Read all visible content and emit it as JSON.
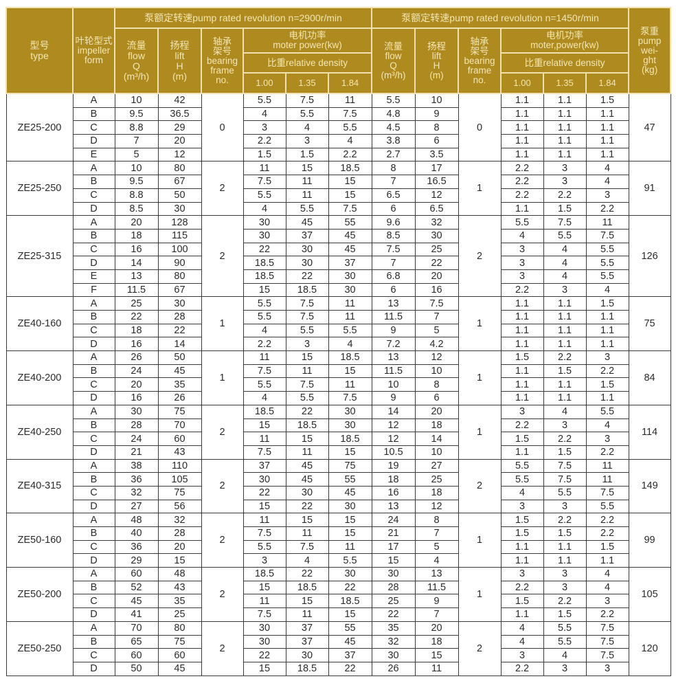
{
  "header": {
    "type": "型号\ntype",
    "impeller": "叶轮型式\nimpeller\nform",
    "group_2900": "泵额定转速pump rated revolution   n=2900r/min",
    "group_1450": "泵额定转速pump rated revolution   n=1450r/min",
    "flow": "流量\nflow\nQ\n(m³/h)",
    "lift": "扬程\nlift\nH\n(m)",
    "bearing": "轴承\n架号\nbearing\nframe\nno.",
    "motor": "电机功率\nmoter power(kw)",
    "motor2": "电机功率\nmoter,power(kw)",
    "density": "比重relative density",
    "d1": "1.00",
    "d2": "1.35",
    "d3": "1.84",
    "weight": "泵重\npump\nwei-\nght\n(kg)"
  },
  "colors": {
    "header_bg": "#ae8a1f",
    "header_text": "#f3e7b4"
  },
  "models": [
    {
      "type": "ZE25-200",
      "bearing_2900": "0",
      "bearing_1450": "0",
      "weight": "47",
      "rows": [
        [
          "A",
          "10",
          "42",
          "5.5",
          "7.5",
          "11",
          "5.5",
          "10",
          "1.1",
          "1.1",
          "1.5"
        ],
        [
          "B",
          "9.5",
          "36.5",
          "4",
          "5.5",
          "7.5",
          "4.8",
          "9",
          "1.1",
          "1.1",
          "1.1"
        ],
        [
          "C",
          "8.8",
          "29",
          "3",
          "4",
          "5.5",
          "4.5",
          "8",
          "1.1",
          "1.1",
          "1.1"
        ],
        [
          "D",
          "7",
          "20",
          "2.2",
          "3",
          "4",
          "3.8",
          "6",
          "1.1",
          "1.1",
          "1.1"
        ],
        [
          "E",
          "5",
          "12",
          "1.5",
          "1.5",
          "2.2",
          "2.7",
          "3.5",
          "1.1",
          "1.1",
          "1.1"
        ]
      ]
    },
    {
      "type": "ZE25-250",
      "bearing_2900": "2",
      "bearing_1450": "1",
      "weight": "91",
      "rows": [
        [
          "A",
          "10",
          "80",
          "11",
          "15",
          "18.5",
          "8",
          "17",
          "2.2",
          "3",
          "4"
        ],
        [
          "B",
          "9.5",
          "67",
          "7.5",
          "11",
          "15",
          "7",
          "16.5",
          "2.2",
          "3",
          "4"
        ],
        [
          "C",
          "8.8",
          "50",
          "5.5",
          "11",
          "15",
          "6.5",
          "12",
          "2.2",
          "2.2",
          "3"
        ],
        [
          "D",
          "8.5",
          "30",
          "4",
          "5.5",
          "7.5",
          "6",
          "6.5",
          "1.1",
          "1.5",
          "2.2"
        ]
      ]
    },
    {
      "type": "ZE25-315",
      "bearing_2900": "2",
      "bearing_1450": "2",
      "weight": "126",
      "rows": [
        [
          "A",
          "20",
          "128",
          "30",
          "45",
          "55",
          "9.6",
          "32",
          "5.5",
          "7.5",
          "11"
        ],
        [
          "B",
          "18",
          "115",
          "30",
          "37",
          "45",
          "8.5",
          "30",
          "4",
          "5.5",
          "7.5"
        ],
        [
          "C",
          "16",
          "100",
          "22",
          "30",
          "45",
          "7.5",
          "25",
          "3",
          "4",
          "5.5"
        ],
        [
          "D",
          "14",
          "90",
          "18.5",
          "30",
          "37",
          "7",
          "22",
          "3",
          "4",
          "5.5"
        ],
        [
          "E",
          "13",
          "80",
          "18.5",
          "22",
          "30",
          "6.8",
          "20",
          "3",
          "4",
          "5.5"
        ],
        [
          "F",
          "11.5",
          "67",
          "15",
          "18.5",
          "30",
          "6",
          "16",
          "2.2",
          "3",
          "4"
        ]
      ]
    },
    {
      "type": "ZE40-160",
      "bearing_2900": "1",
      "bearing_1450": "1",
      "weight": "75",
      "rows": [
        [
          "A",
          "25",
          "30",
          "5.5",
          "7.5",
          "11",
          "13",
          "7.5",
          "1.1",
          "1.1",
          "1.5"
        ],
        [
          "B",
          "22",
          "28",
          "5.5",
          "7.5",
          "11",
          "11.5",
          "7",
          "1.1",
          "1.1",
          "1.1"
        ],
        [
          "C",
          "18",
          "22",
          "4",
          "5.5",
          "5.5",
          "9",
          "5",
          "1.1",
          "1.1",
          "1.1"
        ],
        [
          "D",
          "16",
          "14",
          "2.2",
          "3",
          "4",
          "7.2",
          "4.2",
          "1.1",
          "1.1",
          "1.1"
        ]
      ]
    },
    {
      "type": "ZE40-200",
      "bearing_2900": "1",
      "bearing_1450": "1",
      "weight": "84",
      "rows": [
        [
          "A",
          "26",
          "50",
          "11",
          "15",
          "18.5",
          "13",
          "12",
          "1.5",
          "2.2",
          "3"
        ],
        [
          "B",
          "24",
          "45",
          "7.5",
          "11",
          "15",
          "11.5",
          "10",
          "1.1",
          "1.5",
          "2.2"
        ],
        [
          "C",
          "20",
          "35",
          "5.5",
          "7.5",
          "11",
          "10",
          "8",
          "1.1",
          "1.1",
          "1.5"
        ],
        [
          "D",
          "16",
          "26",
          "4",
          "5.5",
          "7.5",
          "9",
          "6",
          "1.1",
          "1.1",
          "1.1"
        ]
      ]
    },
    {
      "type": "ZE40-250",
      "bearing_2900": "2",
      "bearing_1450": "1",
      "weight": "114",
      "rows": [
        [
          "A",
          "30",
          "75",
          "18.5",
          "22",
          "30",
          "14",
          "20",
          "3",
          "4",
          "5.5"
        ],
        [
          "B",
          "28",
          "70",
          "15",
          "18.5",
          "30",
          "12",
          "18",
          "2.2",
          "3",
          "4"
        ],
        [
          "C",
          "24",
          "60",
          "11",
          "15",
          "18.5",
          "12",
          "14",
          "1.5",
          "2.2",
          "3"
        ],
        [
          "D",
          "21",
          "43",
          "7.5",
          "11",
          "15",
          "10.5",
          "10",
          "1.1",
          "1.5",
          "2.2"
        ]
      ]
    },
    {
      "type": "ZE40-315",
      "bearing_2900": "2",
      "bearing_1450": "2",
      "weight": "149",
      "rows": [
        [
          "A",
          "38",
          "110",
          "37",
          "45",
          "75",
          "19",
          "27",
          "5.5",
          "7.5",
          "11"
        ],
        [
          "B",
          "36",
          "105",
          "30",
          "45",
          "55",
          "18",
          "25",
          "5.5",
          "7.5",
          "11"
        ],
        [
          "C",
          "32",
          "75",
          "22",
          "30",
          "45",
          "16",
          "18",
          "4",
          "5.5",
          "7.5"
        ],
        [
          "D",
          "27",
          "56",
          "15",
          "22",
          "30",
          "13",
          "12",
          "3",
          "3",
          "5.5"
        ]
      ]
    },
    {
      "type": "ZE50-160",
      "bearing_2900": "2",
      "bearing_1450": "1",
      "weight": "99",
      "rows": [
        [
          "A",
          "48",
          "32",
          "11",
          "15",
          "15",
          "24",
          "8",
          "1.5",
          "2.2",
          "2.2"
        ],
        [
          "B",
          "40",
          "28",
          "7.5",
          "11",
          "15",
          "21",
          "7",
          "1.5",
          "1.5",
          "2.2"
        ],
        [
          "C",
          "36",
          "20",
          "5.5",
          "7.5",
          "11",
          "17",
          "5",
          "1.1",
          "1.1",
          "1.5"
        ],
        [
          "D",
          "29",
          "15",
          "3",
          "4",
          "5.5",
          "15",
          "4",
          "1.1",
          "1.1",
          "1.1"
        ]
      ]
    },
    {
      "type": "ZE50-200",
      "bearing_2900": "2",
      "bearing_1450": "1",
      "weight": "105",
      "rows": [
        [
          "A",
          "60",
          "48",
          "18.5",
          "22",
          "30",
          "30",
          "13",
          "3",
          "3",
          "4"
        ],
        [
          "B",
          "52",
          "43",
          "15",
          "18.5",
          "22",
          "28",
          "11.5",
          "2.2",
          "3",
          "4"
        ],
        [
          "C",
          "45",
          "35",
          "11",
          "15",
          "18.5",
          "25",
          "9",
          "1.5",
          "2.2",
          "3"
        ],
        [
          "D",
          "41",
          "25",
          "7.5",
          "11",
          "15",
          "22",
          "7",
          "1.1",
          "1.5",
          "2.2"
        ]
      ]
    },
    {
      "type": "ZE50-250",
      "bearing_2900": "2",
      "bearing_1450": "2",
      "weight": "120",
      "rows": [
        [
          "A",
          "70",
          "80",
          "30",
          "37",
          "55",
          "35",
          "20",
          "4",
          "5.5",
          "7.5"
        ],
        [
          "B",
          "65",
          "75",
          "30",
          "37",
          "45",
          "32",
          "18",
          "4",
          "5.5",
          "7.5"
        ],
        [
          "C",
          "60",
          "60",
          "22",
          "30",
          "37",
          "30",
          "15",
          "3",
          "4",
          "7.5"
        ],
        [
          "D",
          "50",
          "45",
          "15",
          "18.5",
          "22",
          "26",
          "11",
          "2.2",
          "3",
          "3"
        ]
      ]
    }
  ]
}
